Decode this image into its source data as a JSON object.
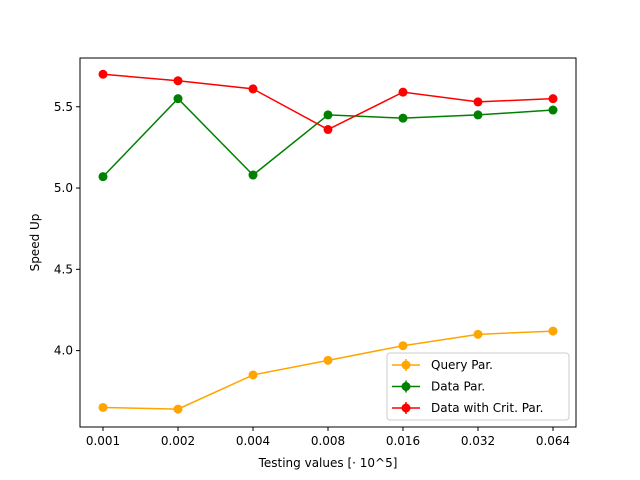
{
  "chart_data": {
    "type": "line",
    "xlabel": "Testing values [· 10^5]",
    "ylabel": "Speed Up",
    "categories": [
      "0.001",
      "0.002",
      "0.004",
      "0.008",
      "0.016",
      "0.032",
      "0.064"
    ],
    "ylim": [
      3.53,
      5.8
    ],
    "yticks": [
      "4.0",
      "4.5",
      "5.0",
      "5.5"
    ],
    "grid": false,
    "legend_position": "lower-right",
    "series": [
      {
        "name": "Query Par.",
        "color": "#ffa500",
        "values": [
          3.65,
          3.64,
          3.85,
          3.94,
          4.03,
          4.1,
          4.12
        ]
      },
      {
        "name": "Data Par.",
        "color": "#008000",
        "values": [
          5.07,
          5.55,
          5.08,
          5.45,
          5.43,
          5.45,
          5.48
        ]
      },
      {
        "name": "Data with Crit. Par.",
        "color": "#ff0000",
        "values": [
          5.7,
          5.66,
          5.61,
          5.36,
          5.59,
          5.53,
          5.55
        ]
      }
    ]
  }
}
